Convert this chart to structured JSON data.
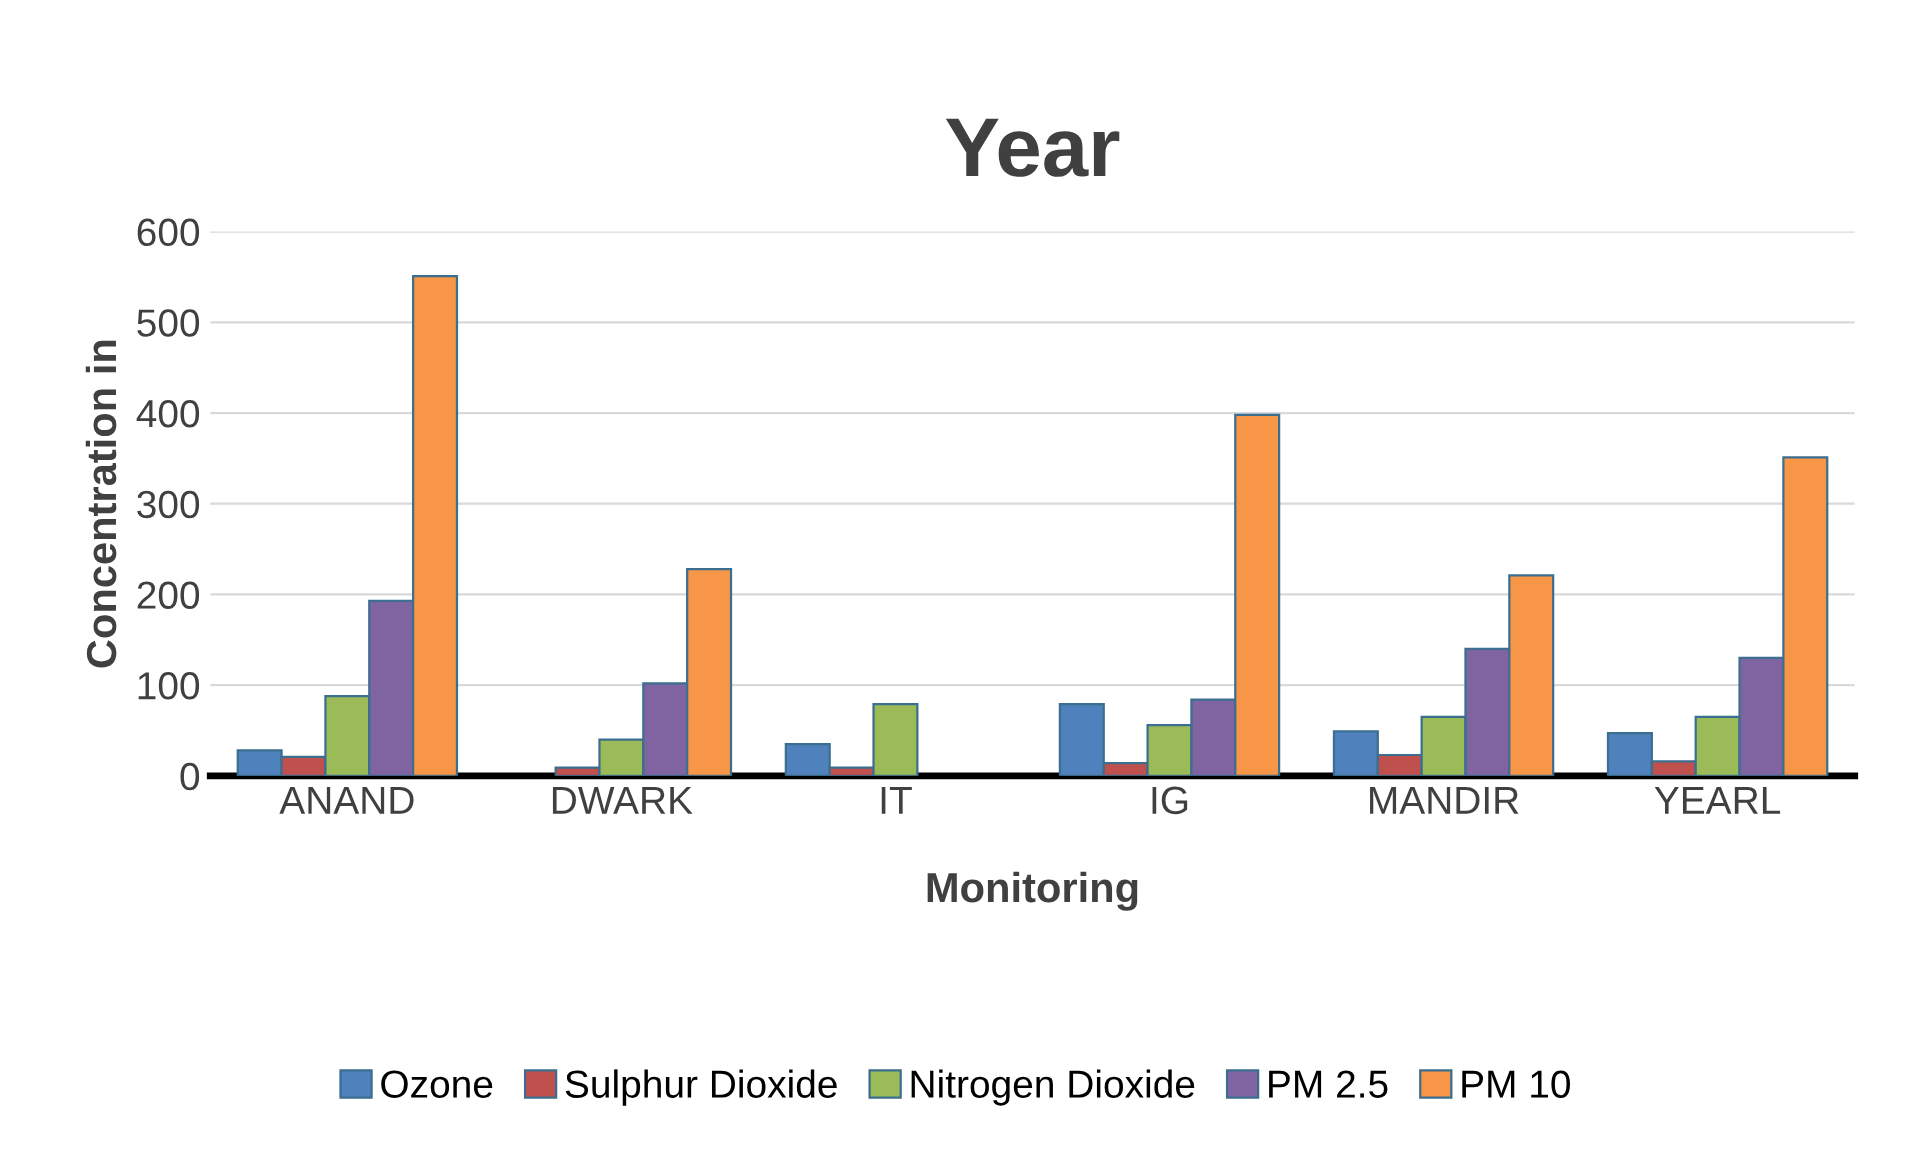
{
  "chart_data": {
    "type": "bar",
    "title": "Year",
    "xlabel": "Monitoring",
    "ylabel": "Concentration in",
    "categories": [
      "ANAND",
      "DWARK",
      "IT",
      "IG",
      "MANDIR",
      "YEARL"
    ],
    "series": [
      {
        "name": "Ozone",
        "color": "#4f81bd",
        "values": [
          28,
          null,
          35,
          79,
          49,
          47
        ]
      },
      {
        "name": "Sulphur Dioxide",
        "color": "#c0504d",
        "values": [
          21,
          9,
          9,
          14,
          23,
          16
        ]
      },
      {
        "name": "Nitrogen Dioxide",
        "color": "#9bbb59",
        "values": [
          88,
          40,
          79,
          56,
          65,
          65
        ]
      },
      {
        "name": "PM 2.5",
        "color": "#8064a2",
        "values": [
          193,
          102,
          null,
          84,
          140,
          130
        ]
      },
      {
        "name": "PM 10",
        "color": "#f79646",
        "values": [
          551,
          228,
          null,
          398,
          221,
          351
        ]
      }
    ],
    "ylim": [
      0,
      600
    ],
    "yticks": [
      0,
      100,
      200,
      300,
      400,
      500,
      600
    ],
    "grid": "y",
    "legend": "bottom"
  }
}
